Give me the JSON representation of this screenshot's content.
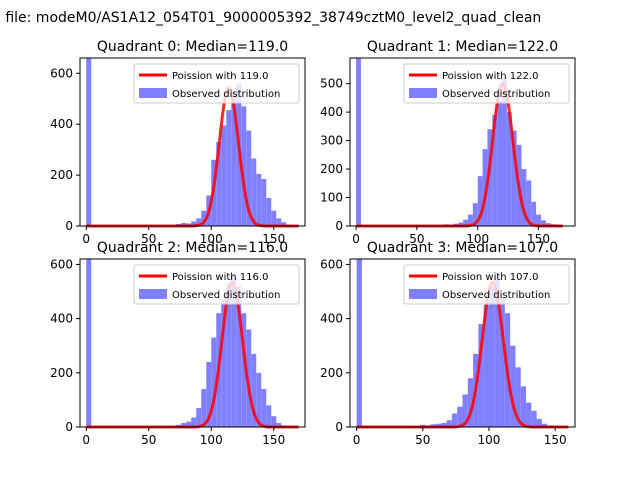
{
  "figure": {
    "suptitle": "n file: modeM0/AS1A12_054T01_9000005392_38749cztM0_level2_quad_clean"
  },
  "colors": {
    "hist": "#8080ff",
    "curve": "#ff0000",
    "axes": "#000000"
  },
  "chart_data": [
    {
      "type": "bar",
      "title": "Quadrant 0: Median=119.0",
      "xlim": [
        -5,
        175
      ],
      "ylim": [
        0,
        660
      ],
      "xticks": [
        0,
        50,
        100,
        150
      ],
      "yticks": [
        0,
        200,
        400,
        600
      ],
      "legend_position": "upper right",
      "series": [
        {
          "name": "Poission with 119.0",
          "kind": "line",
          "mean": 119.0,
          "x_range": [
            0,
            170
          ],
          "y": [
            0,
            0,
            0,
            0,
            0,
            0,
            0,
            0,
            0,
            0,
            0,
            0,
            0,
            0,
            0,
            0,
            0,
            0,
            0,
            0,
            0,
            0,
            0,
            0,
            0,
            0,
            0,
            0,
            0,
            0,
            0,
            0,
            0,
            0,
            0,
            0,
            0,
            0,
            0,
            0,
            0,
            0,
            0,
            0,
            0,
            0,
            0,
            0,
            0,
            0,
            0,
            0,
            0,
            0,
            0,
            0,
            0,
            0,
            0,
            0,
            0,
            0,
            0,
            0,
            0,
            0,
            0,
            0,
            0,
            0,
            0,
            0,
            0,
            0,
            0,
            0,
            0,
            0,
            0,
            0,
            0,
            0,
            0,
            0,
            0,
            0,
            0,
            0,
            0,
            0,
            1,
            1,
            2,
            3,
            4,
            6,
            9,
            13,
            19,
            26,
            36,
            48,
            64,
            84,
            107,
            134,
            165,
            200,
            238,
            278,
            320,
            362,
            402,
            441,
            475,
            503,
            525,
            538,
            543,
            539,
            527,
            507,
            480,
            448,
            411,
            371,
            330,
            290,
            250,
            213,
            178,
            146,
            118,
            94,
            73,
            55,
            41,
            30,
            22,
            15,
            10,
            7,
            4,
            3,
            2,
            1,
            1,
            0,
            0,
            0,
            0,
            0,
            0,
            0,
            0,
            0,
            0,
            0,
            0,
            0,
            0,
            0,
            0,
            0,
            0,
            0,
            0,
            0,
            0,
            0,
            0,
            0,
            0,
            0,
            0,
            0,
            0
          ]
        },
        {
          "name": "Observed distribution",
          "kind": "hist",
          "bin_width": 4,
          "bins": [
            0,
            4,
            8,
            12,
            16,
            20,
            24,
            28,
            32,
            36,
            40,
            44,
            48,
            52,
            56,
            60,
            64,
            68,
            72,
            76,
            80,
            84,
            88,
            92,
            96,
            100,
            104,
            108,
            112,
            116,
            120,
            124,
            128,
            132,
            136,
            140,
            144,
            148,
            152,
            156,
            160,
            164,
            168
          ],
          "values": [
            660,
            0,
            0,
            0,
            0,
            0,
            0,
            0,
            0,
            0,
            0,
            0,
            0,
            0,
            0,
            0,
            0,
            2,
            8,
            12,
            10,
            18,
            30,
            60,
            120,
            260,
            330,
            395,
            455,
            520,
            560,
            470,
            375,
            265,
            205,
            185,
            110,
            60,
            30,
            15,
            6,
            3,
            1
          ]
        }
      ]
    },
    {
      "type": "bar",
      "title": "Quadrant 1: Median=122.0",
      "xlim": [
        -5,
        180
      ],
      "ylim": [
        0,
        590
      ],
      "xticks": [
        0,
        50,
        100,
        150
      ],
      "yticks": [
        0,
        100,
        200,
        300,
        400,
        500
      ],
      "legend_position": "upper right",
      "series": [
        {
          "name": "Poission with 122.0",
          "kind": "line",
          "mean": 122.0,
          "x_range": [
            0,
            170
          ],
          "y": [
            0,
            0,
            0,
            0,
            0,
            0,
            0,
            0,
            0,
            0,
            0,
            0,
            0,
            0,
            0,
            0,
            0,
            0,
            0,
            0,
            0,
            0,
            0,
            0,
            0,
            0,
            0,
            0,
            0,
            0,
            0,
            0,
            0,
            0,
            0,
            0,
            0,
            0,
            0,
            0,
            0,
            0,
            0,
            0,
            0,
            0,
            0,
            0,
            0,
            0,
            0,
            0,
            0,
            0,
            0,
            0,
            0,
            0,
            0,
            0,
            0,
            0,
            0,
            0,
            0,
            0,
            0,
            0,
            0,
            0,
            0,
            0,
            0,
            0,
            0,
            0,
            0,
            0,
            0,
            0,
            0,
            0,
            0,
            0,
            0,
            0,
            0,
            0,
            0,
            0,
            0,
            0,
            1,
            1,
            2,
            3,
            4,
            6,
            9,
            13,
            18,
            25,
            34,
            45,
            60,
            78,
            99,
            124,
            152,
            183,
            217,
            254,
            291,
            329,
            366,
            401,
            432,
            459,
            479,
            493,
            500,
            500,
            493,
            479,
            459,
            433,
            403,
            370,
            334,
            298,
            262,
            227,
            193,
            162,
            134,
            108,
            86,
            67,
            52,
            39,
            29,
            21,
            15,
            10,
            7,
            5,
            3,
            2,
            1,
            1,
            0,
            0,
            0,
            0,
            0,
            0,
            0,
            0,
            0,
            0,
            0,
            0,
            0,
            0,
            0,
            0,
            0,
            0,
            0,
            0,
            0
          ]
        },
        {
          "name": "Observed distribution",
          "kind": "hist",
          "bin_width": 4,
          "bins": [
            0,
            4,
            8,
            12,
            16,
            20,
            24,
            28,
            32,
            36,
            40,
            44,
            48,
            52,
            56,
            60,
            64,
            68,
            72,
            76,
            80,
            84,
            88,
            92,
            96,
            100,
            104,
            108,
            112,
            116,
            120,
            124,
            128,
            132,
            136,
            140,
            144,
            148,
            152,
            156,
            160,
            164,
            168,
            172
          ],
          "values": [
            590,
            0,
            0,
            0,
            0,
            0,
            0,
            0,
            0,
            0,
            0,
            0,
            0,
            0,
            0,
            0,
            0,
            0,
            6,
            5,
            8,
            12,
            22,
            40,
            80,
            175,
            270,
            340,
            390,
            440,
            520,
            400,
            335,
            285,
            200,
            160,
            85,
            40,
            20,
            10,
            6,
            5,
            2,
            1
          ]
        }
      ]
    },
    {
      "type": "bar",
      "title": "Quadrant 2: Median=116.0",
      "xlim": [
        -5,
        175
      ],
      "ylim": [
        0,
        620
      ],
      "xticks": [
        0,
        50,
        100,
        150
      ],
      "yticks": [
        0,
        200,
        400,
        600
      ],
      "legend_position": "upper right",
      "series": [
        {
          "name": "Poission with 116.0",
          "kind": "line",
          "mean": 116.0,
          "x_range": [
            0,
            170
          ],
          "y": [
            0,
            0,
            0,
            0,
            0,
            0,
            0,
            0,
            0,
            0,
            0,
            0,
            0,
            0,
            0,
            0,
            0,
            0,
            0,
            0,
            0,
            0,
            0,
            0,
            0,
            0,
            0,
            0,
            0,
            0,
            0,
            0,
            0,
            0,
            0,
            0,
            0,
            0,
            0,
            0,
            0,
            0,
            0,
            0,
            0,
            0,
            0,
            0,
            0,
            0,
            0,
            0,
            0,
            0,
            0,
            0,
            0,
            0,
            0,
            0,
            0,
            0,
            0,
            0,
            0,
            0,
            0,
            0,
            0,
            0,
            0,
            0,
            0,
            0,
            0,
            0,
            0,
            0,
            0,
            0,
            0,
            0,
            0,
            0,
            0,
            0,
            0,
            0,
            1,
            1,
            2,
            3,
            5,
            7,
            10,
            15,
            21,
            29,
            40,
            53,
            70,
            90,
            114,
            141,
            172,
            207,
            244,
            283,
            323,
            364,
            403,
            440,
            472,
            499,
            519,
            530,
            534,
            530,
            518,
            499,
            474,
            443,
            409,
            371,
            332,
            292,
            253,
            216,
            181,
            150,
            122,
            97,
            76,
            59,
            45,
            33,
            24,
            17,
            12,
            8,
            5,
            3,
            2,
            1,
            1,
            0,
            0,
            0,
            0,
            0,
            0,
            0,
            0,
            0,
            0,
            0,
            0,
            0,
            0,
            0,
            0,
            0,
            0,
            0,
            0,
            0,
            0,
            0,
            0,
            0
          ]
        },
        {
          "name": "Observed distribution",
          "kind": "hist",
          "bin_width": 4,
          "bins": [
            0,
            4,
            8,
            12,
            16,
            20,
            24,
            28,
            32,
            36,
            40,
            44,
            48,
            52,
            56,
            60,
            64,
            68,
            72,
            76,
            80,
            84,
            88,
            92,
            96,
            100,
            104,
            108,
            112,
            116,
            120,
            124,
            128,
            132,
            136,
            140,
            144,
            148,
            152,
            156,
            160,
            164,
            168
          ],
          "values": [
            620,
            0,
            0,
            0,
            0,
            0,
            0,
            0,
            0,
            0,
            0,
            0,
            0,
            0,
            0,
            0,
            0,
            3,
            8,
            15,
            20,
            35,
            70,
            140,
            240,
            330,
            420,
            470,
            530,
            560,
            520,
            420,
            360,
            270,
            200,
            140,
            80,
            40,
            15,
            6,
            3,
            1,
            0
          ]
        }
      ]
    },
    {
      "type": "bar",
      "title": "Quadrant 3: Median=107.0",
      "xlim": [
        -5,
        165
      ],
      "ylim": [
        0,
        620
      ],
      "xticks": [
        0,
        50,
        100,
        150
      ],
      "yticks": [
        0,
        200,
        400,
        600
      ],
      "legend_position": "upper right",
      "series": [
        {
          "name": "Poission with 107.0",
          "kind": "line",
          "mean": 107.0,
          "x_range": [
            0,
            160
          ],
          "y": [
            0,
            0,
            0,
            0,
            0,
            0,
            0,
            0,
            0,
            0,
            0,
            0,
            0,
            0,
            0,
            0,
            0,
            0,
            0,
            0,
            0,
            0,
            0,
            0,
            0,
            0,
            0,
            0,
            0,
            0,
            0,
            0,
            0,
            0,
            0,
            0,
            0,
            0,
            0,
            0,
            0,
            0,
            0,
            0,
            0,
            0,
            0,
            0,
            0,
            0,
            0,
            0,
            0,
            0,
            0,
            0,
            0,
            0,
            0,
            0,
            0,
            0,
            0,
            0,
            0,
            0,
            0,
            0,
            0,
            0,
            0,
            0,
            0,
            0,
            0,
            1,
            1,
            2,
            3,
            5,
            7,
            10,
            14,
            20,
            28,
            38,
            51,
            68,
            88,
            113,
            141,
            173,
            208,
            246,
            286,
            327,
            368,
            408,
            445,
            477,
            503,
            522,
            532,
            534,
            527,
            513,
            491,
            463,
            430,
            393,
            354,
            314,
            274,
            235,
            199,
            166,
            136,
            110,
            87,
            68,
            52,
            39,
            29,
            21,
            15,
            10,
            7,
            5,
            3,
            2,
            1,
            1,
            0,
            0,
            0,
            0,
            0,
            0,
            0,
            0,
            0,
            0,
            0,
            0,
            0,
            0,
            0,
            0,
            0,
            0,
            0,
            0,
            0,
            0,
            0,
            0,
            0,
            0,
            0,
            0,
            0
          ]
        },
        {
          "name": "Observed distribution",
          "kind": "hist",
          "bin_width": 4,
          "bins": [
            0,
            4,
            8,
            12,
            16,
            20,
            24,
            28,
            32,
            36,
            40,
            44,
            48,
            52,
            56,
            60,
            64,
            68,
            72,
            76,
            80,
            84,
            88,
            92,
            96,
            100,
            104,
            108,
            112,
            116,
            120,
            124,
            128,
            132,
            136,
            140,
            144,
            148,
            152,
            156
          ],
          "values": [
            620,
            0,
            0,
            0,
            0,
            0,
            0,
            0,
            0,
            0,
            0,
            5,
            8,
            6,
            10,
            12,
            15,
            25,
            50,
            75,
            120,
            180,
            270,
            380,
            450,
            520,
            560,
            480,
            420,
            300,
            220,
            150,
            90,
            60,
            30,
            12,
            6,
            3,
            2,
            1
          ]
        }
      ]
    }
  ]
}
